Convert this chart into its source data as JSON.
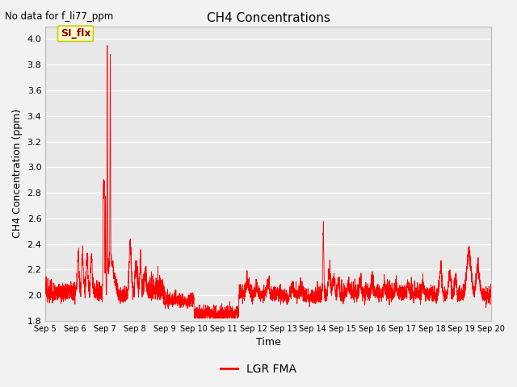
{
  "title": "CH4 Concentrations",
  "xlabel": "Time",
  "ylabel": "CH4 Concentration (ppm)",
  "top_left_text": "No data for f_li77_ppm",
  "legend_label": "LGR FMA",
  "line_color": "#ff0000",
  "fig_bg_color": "#f2f2f2",
  "plot_bg_color": "#e8e8e8",
  "grid_color": "#ffffff",
  "ylim": [
    1.8,
    4.1
  ],
  "yticks": [
    1.8,
    2.0,
    2.2,
    2.4,
    2.6,
    2.8,
    3.0,
    3.2,
    3.4,
    3.6,
    3.8,
    4.0
  ],
  "xlim": [
    5,
    20
  ],
  "xtick_positions": [
    5,
    6,
    7,
    8,
    9,
    10,
    11,
    12,
    13,
    14,
    15,
    16,
    17,
    18,
    19,
    20
  ],
  "xtick_labels": [
    "Sep 5",
    "Sep 6",
    "Sep 7",
    "Sep 8",
    "Sep 9",
    "Sep 10",
    "Sep 11",
    "Sep 12",
    "Sep 13",
    "Sep 14",
    "Sep 15",
    "Sep 16",
    "Sep 17",
    "Sep 18",
    "Sep 19",
    "Sep 20"
  ],
  "annotation_text": "SI_flx",
  "annotation_color": "#8B0000",
  "annotation_box_face": "#ffffcc",
  "annotation_box_edge": "#cccc00"
}
